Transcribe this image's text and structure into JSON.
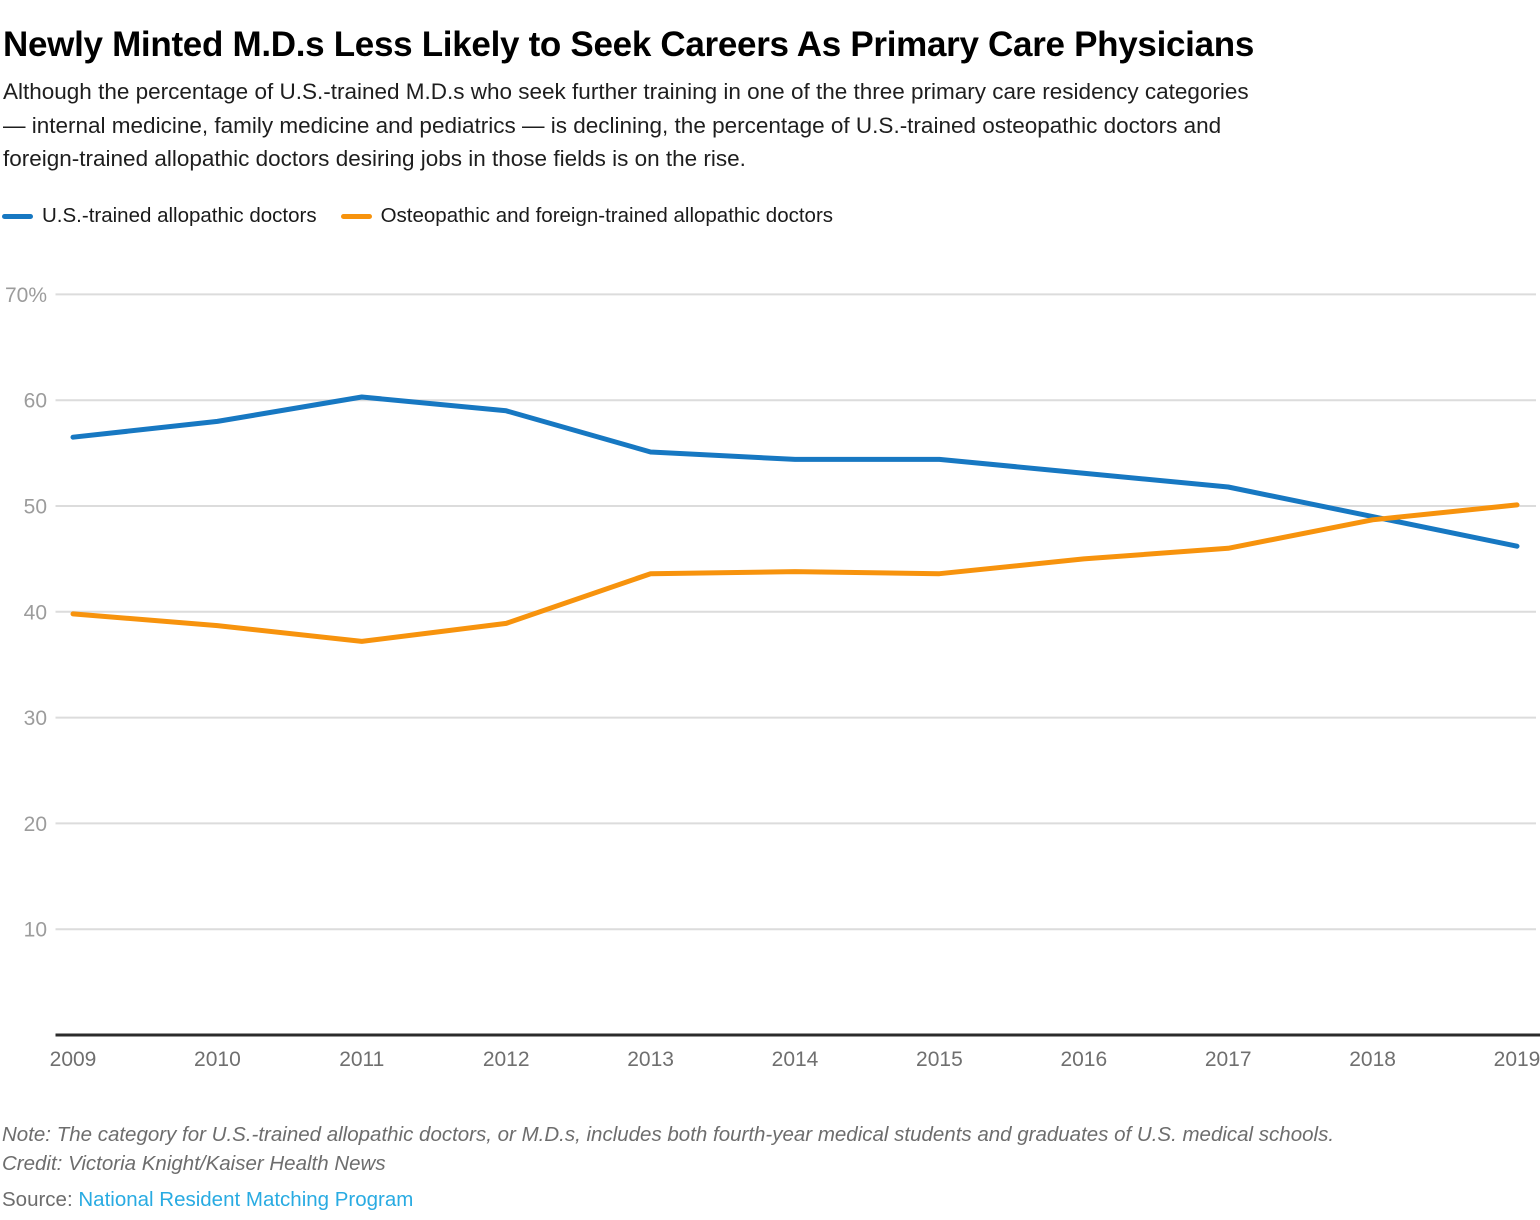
{
  "header": {
    "title": "Newly Minted M.D.s Less Likely to Seek Careers As Primary Care Physicians",
    "subtitle_lines": [
      "Although the percentage of U.S.-trained M.D.s who seek further training in one of the three primary care residency categories",
      "— internal medicine, family medicine and pediatrics — is declining, the percentage of U.S.-trained osteopathic doctors and",
      "foreign-trained allopathic doctors desiring jobs in those fields is on the rise."
    ]
  },
  "legend": {
    "items": [
      {
        "label": "U.S.-trained allopathic doctors",
        "color": "#1778c2"
      },
      {
        "label": "Osteopathic and foreign-trained allopathic doctors",
        "color": "#f7930d"
      }
    ]
  },
  "chart_data": {
    "type": "line",
    "x": [
      2009,
      2010,
      2011,
      2012,
      2013,
      2014,
      2015,
      2016,
      2017,
      2018,
      2019
    ],
    "series": [
      {
        "name": "U.S.-trained allopathic doctors",
        "color": "#1778c2",
        "values": [
          56.5,
          58.0,
          60.3,
          59.0,
          55.1,
          54.4,
          54.4,
          53.1,
          51.8,
          49.0,
          46.2
        ]
      },
      {
        "name": "Osteopathic and foreign-trained allopathic doctors",
        "color": "#f7930d",
        "values": [
          39.8,
          38.7,
          37.2,
          38.9,
          43.6,
          43.8,
          43.6,
          45.0,
          46.0,
          48.7,
          50.1
        ]
      }
    ],
    "ylim": [
      0,
      70
    ],
    "yticks": [
      70,
      60,
      50,
      40,
      30,
      20,
      10
    ],
    "ytick_labels": [
      "70%",
      "60",
      "50",
      "40",
      "30",
      "20",
      "10"
    ],
    "grid": true,
    "legend_position": "top"
  },
  "footer": {
    "note": "Note: The category for U.S.-trained allopathic doctors, or M.D.s, includes both fourth-year medical students and graduates of U.S. medical schools.",
    "credit": "Credit: Victoria Knight/Kaiser Health News",
    "source_label": "Source: ",
    "source_link": "National Resident Matching Program"
  },
  "colors": {
    "grid": "#dcdcdc",
    "axis": "#2b2b2b",
    "ytick_label": "#9c9c9c",
    "xtick_label": "#6f6f6f",
    "source_link": "#29abe2"
  }
}
